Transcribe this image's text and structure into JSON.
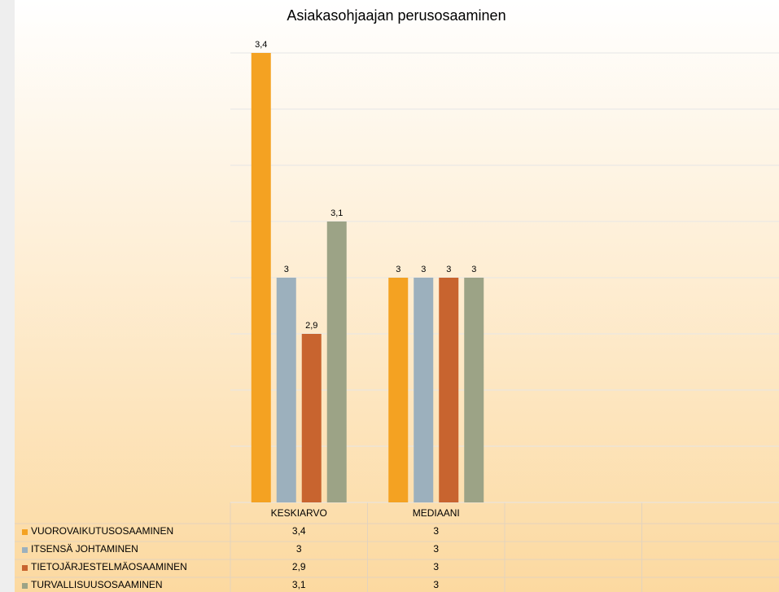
{
  "chart_data": {
    "type": "bar",
    "title": "Asiakasohjaajan perusosaaminen",
    "categories": [
      "KESKIARVO",
      "MEDIAANI",
      null,
      null
    ],
    "series": [
      {
        "name": "VUOROVAIKUTUSOSAAMINEN",
        "color": "#f4a222",
        "values": [
          3.4,
          3,
          null,
          null
        ],
        "value_labels": [
          "3,4",
          "3",
          null,
          null
        ]
      },
      {
        "name": "ITSENSÄ JOHTAMINEN",
        "color": "#9cb0bd",
        "values": [
          3,
          3,
          null,
          null
        ],
        "value_labels": [
          "3",
          "3",
          null,
          null
        ]
      },
      {
        "name": "TIETOJÄRJESTELMÄOSAAMINEN",
        "color": "#c8642f",
        "values": [
          2.9,
          3,
          null,
          null
        ],
        "value_labels": [
          "2,9",
          "3",
          null,
          null
        ]
      },
      {
        "name": "TURVALLISUUSOSAAMINEN",
        "color": "#9ca386",
        "values": [
          3.1,
          3,
          null,
          null
        ],
        "value_labels": [
          "3,1",
          "3",
          null,
          null
        ]
      }
    ],
    "ylim": [
      2.6,
      3.4
    ],
    "yticks": [
      2.6,
      2.7,
      2.8,
      2.9,
      3,
      3.1,
      3.2,
      3.3,
      3.4
    ],
    "grid": true
  }
}
